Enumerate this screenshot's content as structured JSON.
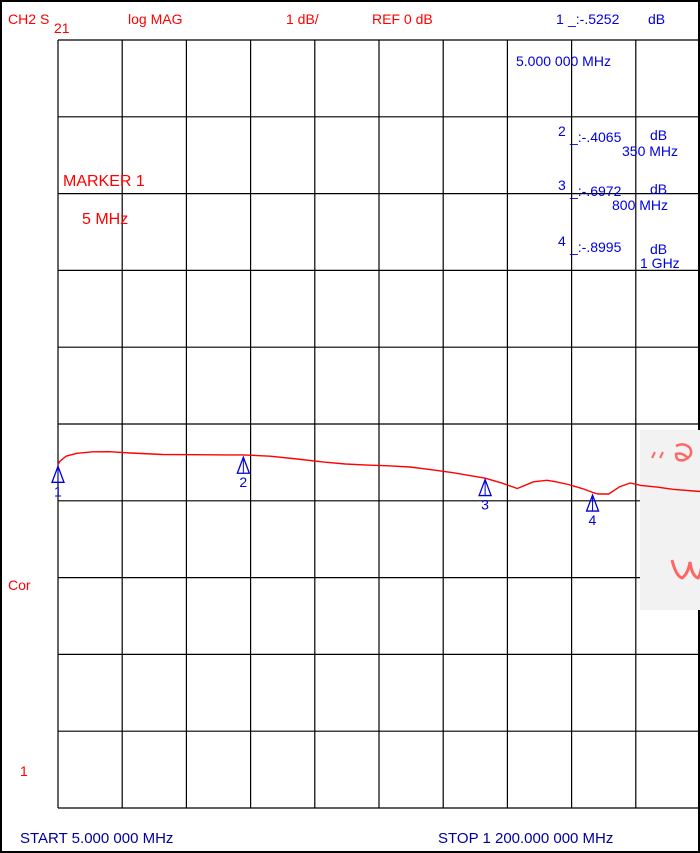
{
  "header": {
    "channel": "CH2",
    "param_s": "S",
    "param_sub": "21",
    "format": "log MAG",
    "scale": "1 dB/",
    "reference": "REF 0 dB"
  },
  "marker_readout": {
    "m1_index": "1",
    "m1_value": "_:-.5252",
    "m1_unit": "dB",
    "m1_freq": "5.000 000 MHz",
    "m2_index": "2",
    "m2_value": "_:-.4065",
    "m2_unit": "dB",
    "m2_freq": "350 MHz",
    "m3_index": "3",
    "m3_value": "_:-.6972",
    "m3_unit": "dB",
    "m3_freq": "800 MHz",
    "m4_index": "4",
    "m4_value": "_:-.8995",
    "m4_unit": "dB",
    "m4_freq": "1 GHz"
  },
  "active_marker": {
    "title": "MARKER 1",
    "freq": "5 MHz"
  },
  "side_labels": {
    "cor": "Cor",
    "one": "1"
  },
  "footer": {
    "start": "START   5.000 000 MHz",
    "stop": "STOP 1 200.000 000 MHz"
  },
  "colors": {
    "trace": "#ff0000",
    "marker": "#0000dd",
    "grid": "#000000",
    "label": "#000099"
  },
  "chart_data": {
    "type": "line",
    "title": "",
    "xlabel": "",
    "ylabel": "",
    "x_unit": "MHz",
    "y_unit": "dB",
    "xlim": [
      5,
      1200
    ],
    "reference_level": 0,
    "scale_per_div": 1,
    "series": [
      {
        "x": [
          5,
          8,
          20,
          40,
          70,
          100,
          140,
          200,
          260,
          320,
          350,
          400,
          450,
          500,
          540,
          580,
          620,
          660,
          700,
          740,
          780,
          800,
          830,
          860,
          890,
          915,
          930,
          955,
          980,
          1000,
          1010,
          1030,
          1050,
          1070,
          1090,
          1120,
          1150,
          1200
        ],
        "y": [
          -0.53,
          -0.48,
          -0.41,
          -0.38,
          -0.37,
          -0.37,
          -0.38,
          -0.39,
          -0.39,
          -0.4,
          -0.41,
          -0.43,
          -0.46,
          -0.49,
          -0.51,
          -0.53,
          -0.55,
          -0.57,
          -0.6,
          -0.63,
          -0.67,
          -0.7,
          -0.77,
          -0.85,
          -0.76,
          -0.73,
          -0.74,
          -0.78,
          -0.84,
          -0.9,
          -0.92,
          -0.91,
          -0.81,
          -0.76,
          -0.8,
          -0.83,
          -0.86,
          -0.88
        ]
      }
    ],
    "markers": [
      {
        "label": "1",
        "x": 5,
        "y": -0.5252
      },
      {
        "label": "2",
        "x": 350,
        "y": -0.4065
      },
      {
        "label": "3",
        "x": 800,
        "y": -0.6972
      },
      {
        "label": "4",
        "x": 1000,
        "y": -0.8995
      }
    ]
  }
}
